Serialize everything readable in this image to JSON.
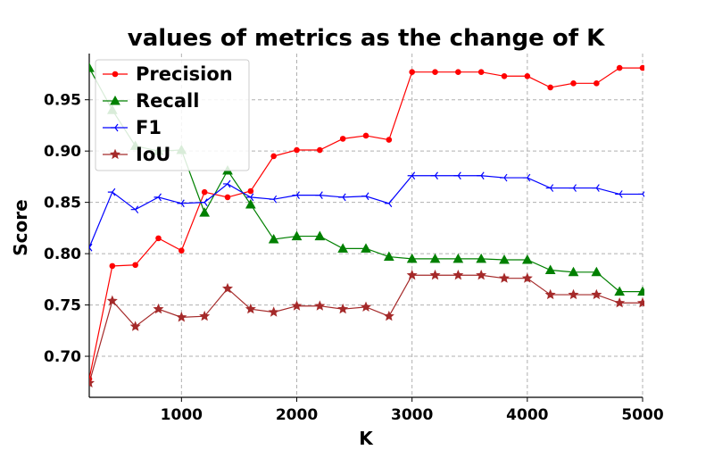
{
  "chart_data": {
    "type": "line",
    "title": "values of metrics as the change of K",
    "xlabel": "K",
    "ylabel": "Score",
    "xlim": [
      200,
      5000
    ],
    "ylim": [
      0.66,
      0.995
    ],
    "x_ticks": [
      1000,
      2000,
      3000,
      4000,
      5000
    ],
    "x_tick_labels": [
      "1000",
      "2000",
      "3000",
      "4000",
      "5000"
    ],
    "y_ticks": [
      0.7,
      0.75,
      0.8,
      0.85,
      0.9,
      0.95
    ],
    "y_tick_labels": [
      "0.70",
      "0.75",
      "0.80",
      "0.85",
      "0.90",
      "0.95"
    ],
    "grid": true,
    "legend_position": "top-left",
    "x": [
      200,
      400,
      600,
      800,
      1000,
      1200,
      1400,
      1600,
      1800,
      2000,
      2200,
      2400,
      2600,
      2800,
      3000,
      3200,
      3400,
      3600,
      3800,
      4000,
      4200,
      4400,
      4600,
      4800,
      5000
    ],
    "series": [
      {
        "name": "Precision",
        "color": "#ff0000",
        "marker": "circle",
        "values": [
          0.678,
          0.788,
          0.789,
          0.815,
          0.803,
          0.86,
          0.855,
          0.861,
          0.895,
          0.901,
          0.901,
          0.912,
          0.915,
          0.911,
          0.977,
          0.977,
          0.977,
          0.977,
          0.973,
          0.973,
          0.962,
          0.966,
          0.966,
          0.981,
          0.981
        ]
      },
      {
        "name": "Recall",
        "color": "#008000",
        "marker": "triangle",
        "values": [
          0.981,
          0.94,
          0.905,
          0.9,
          0.901,
          0.84,
          0.881,
          0.848,
          0.814,
          0.817,
          0.817,
          0.805,
          0.805,
          0.797,
          0.795,
          0.795,
          0.795,
          0.795,
          0.794,
          0.794,
          0.784,
          0.782,
          0.782,
          0.763,
          0.763
        ]
      },
      {
        "name": "F1",
        "color": "#0000ff",
        "marker": "tri",
        "values": [
          0.806,
          0.86,
          0.843,
          0.855,
          0.849,
          0.85,
          0.868,
          0.855,
          0.853,
          0.857,
          0.857,
          0.855,
          0.856,
          0.849,
          0.876,
          0.876,
          0.876,
          0.876,
          0.874,
          0.874,
          0.864,
          0.864,
          0.864,
          0.858,
          0.858
        ]
      },
      {
        "name": "IoU",
        "color": "#a52a2a",
        "marker": "star",
        "values": [
          0.674,
          0.754,
          0.729,
          0.746,
          0.738,
          0.739,
          0.766,
          0.746,
          0.743,
          0.749,
          0.749,
          0.746,
          0.748,
          0.739,
          0.779,
          0.779,
          0.779,
          0.779,
          0.776,
          0.776,
          0.76,
          0.76,
          0.76,
          0.752,
          0.752
        ]
      }
    ]
  }
}
